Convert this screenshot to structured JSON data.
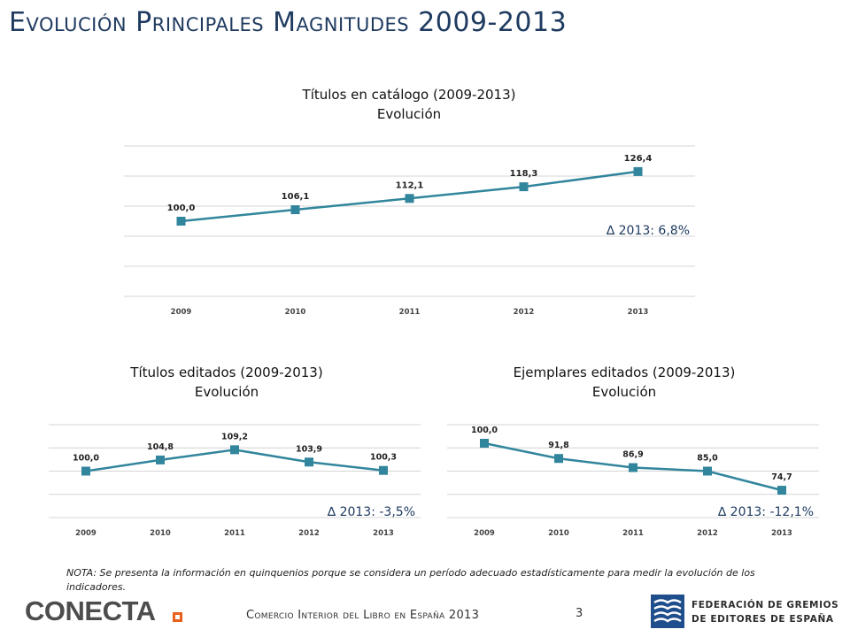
{
  "header": {
    "title": "Evolución Principales Magnitudes 2009-2013"
  },
  "chart_data": [
    {
      "type": "line",
      "title_line1": "Títulos en catálogo (2009-2013)",
      "title_line2": "Evolución",
      "categories": [
        "2009",
        "2010",
        "2011",
        "2012",
        "2013"
      ],
      "values": [
        100.0,
        106.1,
        112.1,
        118.3,
        126.4
      ],
      "labels": [
        "100,0",
        "106,1",
        "112,1",
        "118,3",
        "126,4"
      ],
      "ylim": [
        60,
        140
      ],
      "grid": true,
      "annotation": "∆ 2013:  6,8%",
      "color": "#31859c"
    },
    {
      "type": "line",
      "title_line1": "Títulos editados (2009-2013)",
      "title_line2": "Evolución",
      "categories": [
        "2009",
        "2010",
        "2011",
        "2012",
        "2013"
      ],
      "values": [
        100.0,
        104.8,
        109.2,
        103.9,
        100.3
      ],
      "labels": [
        "100,0",
        "104,8",
        "109,2",
        "103,9",
        "100,3"
      ],
      "ylim": [
        80,
        120
      ],
      "grid": true,
      "annotation": "∆ 2013:  -3,5%",
      "color": "#31859c"
    },
    {
      "type": "line",
      "title_line1": "Ejemplares editados (2009-2013)",
      "title_line2": "Evolución",
      "categories": [
        "2009",
        "2010",
        "2011",
        "2012",
        "2013"
      ],
      "values": [
        100.0,
        91.8,
        86.9,
        85.0,
        74.7
      ],
      "labels": [
        "100,0",
        "91,8",
        "86,9",
        "85,0",
        "74,7"
      ],
      "ylim": [
        60,
        110
      ],
      "grid": true,
      "annotation": "∆ 2013:  -12,1%",
      "color": "#31859c"
    }
  ],
  "note": "NOTA: Se presenta la información en quinquenios porque se considera un período adecuado estadísticamente para medir la evolución de los indicadores.",
  "footer": {
    "logo_text": "CONECTA",
    "text": "Comercio Interior del Libro en España 2013",
    "page_number": "3",
    "federation_line1": "FEDERACIÓN DE GREMIOS",
    "federation_line2": "DE EDITORES DE ESPAÑA"
  },
  "colors": {
    "title": "#1f3b60",
    "series": "#31859c",
    "logo_accent": "#e8601c",
    "logo_text": "#4d4d4d",
    "emblem": "#1f4e8c"
  }
}
